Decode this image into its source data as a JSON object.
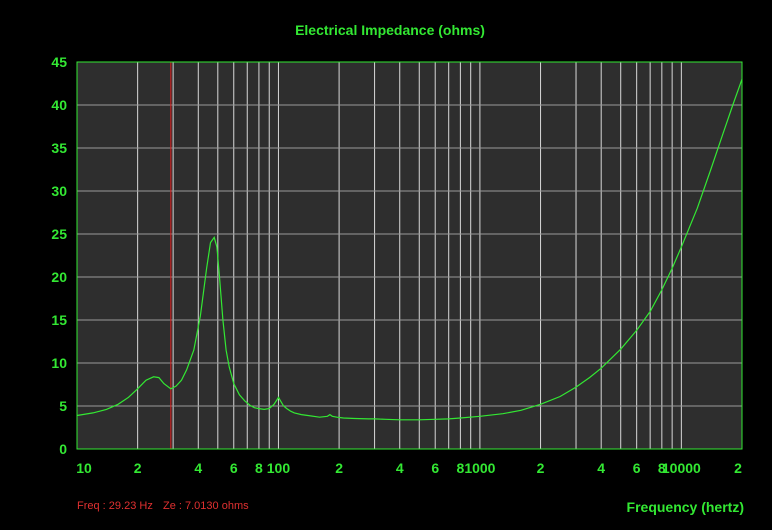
{
  "chart_data": {
    "type": "line",
    "title": "Electrical Impedance (ohms)",
    "xlabel": "Frequency (hertz)",
    "ylabel": "",
    "xscale": "log",
    "xlim": [
      10,
      20000
    ],
    "ylim": [
      0,
      45
    ],
    "grid": true,
    "y_ticks": [
      "0",
      "5",
      "10",
      "15",
      "20",
      "25",
      "30",
      "35",
      "40",
      "45"
    ],
    "x_ticks": [
      {
        "value": 10,
        "label": "10"
      },
      {
        "value": 20,
        "label": "2"
      },
      {
        "value": 40,
        "label": "4"
      },
      {
        "value": 60,
        "label": "6"
      },
      {
        "value": 80,
        "label": "8"
      },
      {
        "value": 100,
        "label": "100"
      },
      {
        "value": 200,
        "label": "2"
      },
      {
        "value": 400,
        "label": "4"
      },
      {
        "value": 600,
        "label": "6"
      },
      {
        "value": 800,
        "label": "8"
      },
      {
        "value": 1000,
        "label": "1000"
      },
      {
        "value": 2000,
        "label": "2"
      },
      {
        "value": 4000,
        "label": "4"
      },
      {
        "value": 6000,
        "label": "6"
      },
      {
        "value": 8000,
        "label": "8"
      },
      {
        "value": 10000,
        "label": "10000"
      },
      {
        "value": 20000,
        "label": "2"
      }
    ],
    "cursor": {
      "freq": 29.23
    },
    "readout": {
      "freq": "Freq : 29.23 Hz",
      "ze": "Ze : 7.0130 ohms"
    },
    "series": [
      {
        "x": [
          10,
          12,
          14,
          16,
          18,
          20,
          22,
          24,
          25.5,
          27,
          29.23,
          31,
          33,
          35,
          38,
          41,
          44,
          46,
          48,
          49.5,
          51,
          53,
          55,
          57,
          60,
          64,
          68,
          72,
          76,
          80,
          85,
          90,
          95,
          100,
          103,
          106,
          110,
          115,
          120,
          130,
          140,
          160,
          175,
          180,
          185,
          195,
          210,
          240,
          280,
          300,
          340,
          400,
          500,
          600,
          700,
          800,
          1000,
          1300,
          1600,
          2000,
          2500,
          3000,
          3500,
          4000,
          5000,
          6000,
          7000,
          8000,
          9000,
          10000,
          12000,
          14000,
          16000,
          18000,
          20000
        ],
        "y": [
          3.9,
          4.2,
          4.6,
          5.2,
          6.0,
          7.0,
          8.0,
          8.4,
          8.3,
          7.6,
          7.0,
          7.3,
          8.0,
          9.2,
          11.5,
          15.5,
          21.0,
          24.0,
          24.6,
          23.5,
          20.0,
          15.0,
          11.5,
          9.5,
          7.6,
          6.3,
          5.6,
          5.1,
          4.8,
          4.7,
          4.6,
          4.7,
          5.2,
          6.0,
          5.5,
          5.0,
          4.7,
          4.4,
          4.2,
          4.0,
          3.9,
          3.7,
          3.8,
          4.0,
          3.8,
          3.7,
          3.6,
          3.55,
          3.5,
          3.5,
          3.45,
          3.4,
          3.4,
          3.45,
          3.5,
          3.6,
          3.8,
          4.1,
          4.5,
          5.2,
          6.1,
          7.2,
          8.3,
          9.4,
          11.6,
          13.8,
          16.0,
          18.5,
          21.0,
          23.5,
          28.0,
          32.5,
          36.5,
          40.0,
          43.0
        ]
      }
    ]
  }
}
